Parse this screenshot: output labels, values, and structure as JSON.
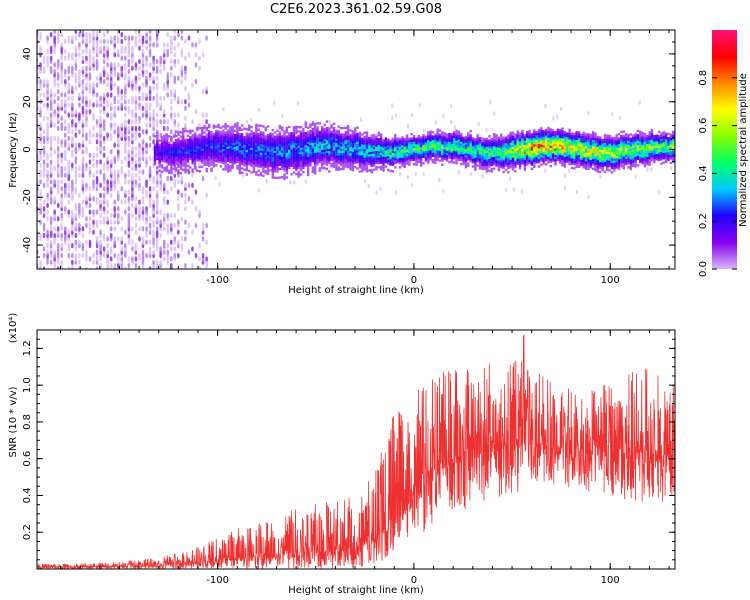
{
  "title": "C2E6.2023.361.02.59.G08",
  "chart_data": [
    {
      "type": "heatmap",
      "title": "C2E6.2023.361.02.59.G08",
      "xlabel": "Height of straight line (km)",
      "ylabel": "Frequency (Hz)",
      "xlim": [
        -192,
        133
      ],
      "ylim": [
        -50,
        50
      ],
      "xticks": [
        -100,
        0,
        100
      ],
      "xtick_labels": [
        "-100",
        "0",
        "100"
      ],
      "yticks": [
        -40,
        -20,
        0,
        20,
        40
      ],
      "ytick_labels": [
        "-40",
        "-20",
        "0",
        "20",
        "40"
      ],
      "colorbar": {
        "label": "Normalized spectral amplitude",
        "range": [
          0.0,
          1.0
        ],
        "ticks": [
          0.0,
          0.2,
          0.4,
          0.6,
          0.8
        ],
        "tick_labels": [
          "0.0",
          "0.2",
          "0.4",
          "0.6",
          "0.8"
        ],
        "colormap": [
          "#d8b8f8",
          "#8800ee",
          "#2200ff",
          "#00ccff",
          "#00ff66",
          "#88ff00",
          "#ffff00",
          "#ff8800",
          "#ff0000",
          "#ff1177"
        ]
      },
      "noise_region_x": [
        -192,
        -105
      ],
      "signal_band": {
        "center_hz": 0,
        "halfwidth_hz": [
          [
            -130,
            5
          ],
          [
            -100,
            6
          ],
          [
            -60,
            7
          ],
          [
            -20,
            5
          ],
          [
            0,
            4
          ],
          [
            50,
            5
          ],
          [
            100,
            5
          ],
          [
            133,
            4
          ]
        ],
        "peak_amplitude": [
          [
            -130,
            0.2
          ],
          [
            -100,
            0.28
          ],
          [
            -60,
            0.32
          ],
          [
            -20,
            0.4
          ],
          [
            0,
            0.5
          ],
          [
            40,
            0.45
          ],
          [
            60,
            0.8
          ],
          [
            80,
            0.7
          ],
          [
            100,
            0.6
          ],
          [
            133,
            0.55
          ]
        ]
      }
    },
    {
      "type": "line",
      "xlabel": "Height of straight line (km)",
      "ylabel": "SNR (10 * v/v)",
      "y_multiplier": "(x10⁴)",
      "xlim": [
        -192,
        133
      ],
      "ylim": [
        0,
        1.3
      ],
      "xticks": [
        -100,
        0,
        100
      ],
      "xtick_labels": [
        "-100",
        "0",
        "100"
      ],
      "yticks": [
        0.2,
        0.4,
        0.6,
        0.8,
        1.0,
        1.2
      ],
      "ytick_labels": [
        "0.2",
        "0.4",
        "0.6",
        "0.8",
        "1.0",
        "1.2"
      ],
      "color": "#ee3030",
      "series": [
        {
          "x": [
            -192,
            -170,
            -150,
            -130,
            -120,
            -110,
            -100,
            -90,
            -80,
            -70,
            -60,
            -50,
            -40,
            -30,
            -20,
            -15,
            -10,
            -5,
            0,
            5,
            10,
            15,
            20,
            30,
            40,
            50,
            60,
            70,
            80,
            90,
            100,
            110,
            120,
            133
          ],
          "values": [
            0.012,
            0.012,
            0.015,
            0.02,
            0.03,
            0.04,
            0.05,
            0.06,
            0.07,
            0.08,
            0.09,
            0.1,
            0.1,
            0.11,
            0.16,
            0.22,
            0.3,
            0.38,
            0.42,
            0.45,
            0.5,
            0.55,
            0.6,
            0.65,
            0.68,
            0.7,
            0.68,
            0.66,
            0.65,
            0.64,
            0.66,
            0.64,
            0.63,
            0.63
          ],
          "upper": [
            0.03,
            0.03,
            0.04,
            0.06,
            0.09,
            0.13,
            0.17,
            0.22,
            0.25,
            0.29,
            0.33,
            0.36,
            0.37,
            0.4,
            0.55,
            0.7,
            0.85,
            0.9,
            0.95,
            1.0,
            1.05,
            1.08,
            1.1,
            1.12,
            1.15,
            1.16,
            1.1,
            1.02,
            1.0,
            1.0,
            1.02,
            1.08,
            1.1,
            1.06
          ],
          "lower": [
            0.0,
            0.0,
            0.0,
            0.0,
            0.0,
            0.0,
            0.0,
            0.0,
            0.0,
            0.0,
            0.0,
            0.0,
            0.0,
            0.0,
            0.02,
            0.05,
            0.1,
            0.15,
            0.2,
            0.18,
            0.25,
            0.28,
            0.3,
            0.32,
            0.35,
            0.4,
            0.45,
            0.46,
            0.44,
            0.42,
            0.4,
            0.35,
            0.3,
            0.4
          ],
          "peak": {
            "x": 56,
            "value": 1.27
          }
        }
      ]
    }
  ]
}
